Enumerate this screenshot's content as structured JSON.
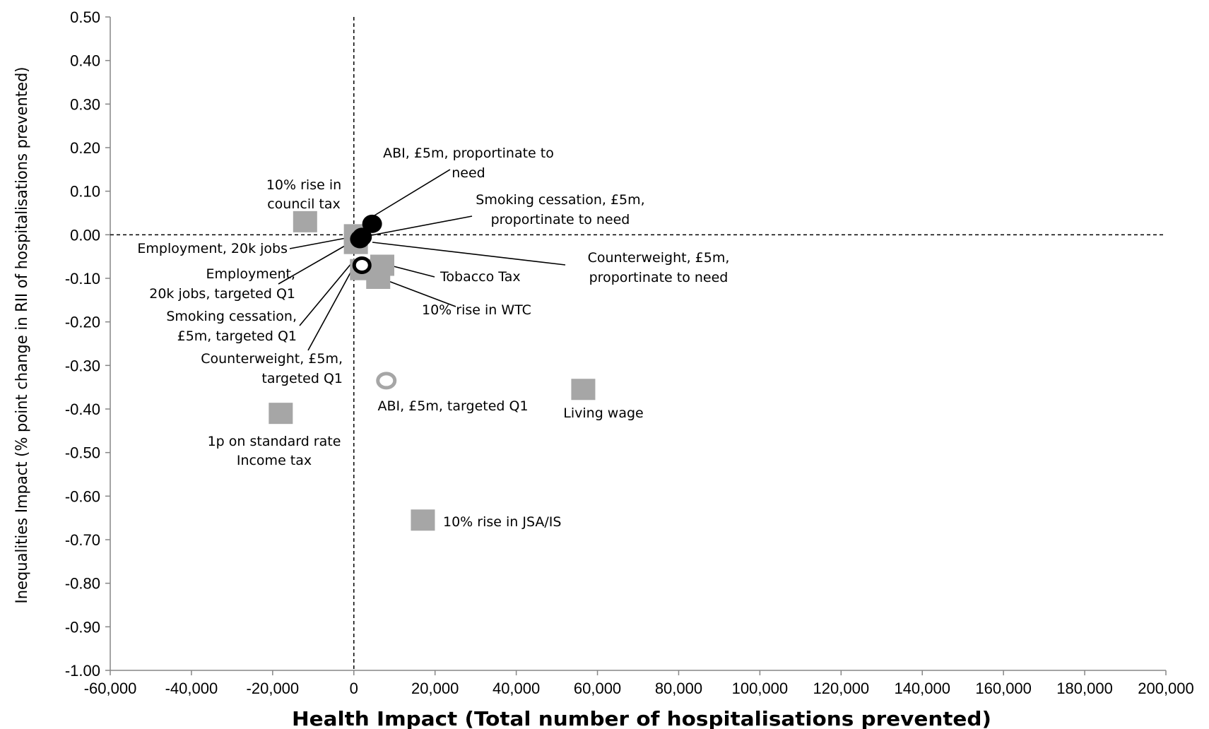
{
  "chart_data": {
    "type": "scatter",
    "xlabel": "Health Impact (Total number of  hospitalisations prevented)",
    "ylabel": "Inequalities Impact (% point change in RII of hospitalisations prevented)",
    "xlim": [
      -60000,
      200000
    ],
    "ylim": [
      -1.0,
      0.5
    ],
    "x_ticks": [
      "-60,000",
      "-40,000",
      "-20,000",
      "0",
      "20,000",
      "40,000",
      "60,000",
      "80,000",
      "100,000",
      "120,000",
      "140,000",
      "160,000",
      "180,000",
      "200,000"
    ],
    "y_ticks": [
      "0.50",
      "0.40",
      "0.30",
      "0.20",
      "0.10",
      "0.00",
      "-0.10",
      "-0.20",
      "-0.30",
      "-0.40",
      "-0.50",
      "-0.60",
      "-0.70",
      "-0.80",
      "-0.90",
      "-1.00"
    ],
    "grid": false,
    "reference_lines": [
      {
        "axis": "x",
        "value": 0,
        "style": "dashed"
      },
      {
        "axis": "y",
        "value": 0,
        "style": "dashed"
      }
    ],
    "colors": {
      "grey_marker": "#a6a6a6",
      "black_marker": "#000000",
      "axis": "#868686"
    },
    "points": [
      {
        "id": "council-tax",
        "x": -12000,
        "y": 0.03,
        "marker": "square",
        "label": [
          "10% rise in",
          "council tax"
        ]
      },
      {
        "id": "abi-need",
        "x": 4500,
        "y": 0.025,
        "marker": "circle-filled",
        "label": [
          "ABI, £5m, proportinate to",
          "need"
        ]
      },
      {
        "id": "smoking-need",
        "x": 2000,
        "y": -0.005,
        "marker": "circle-filled",
        "label": [
          "Smoking cessation, £5m,",
          "proportinate to need"
        ]
      },
      {
        "id": "employment",
        "x": 500,
        "y": 0.0,
        "marker": "square",
        "label": [
          "Employment, 20k jobs"
        ]
      },
      {
        "id": "employment-q1",
        "x": 500,
        "y": -0.02,
        "marker": "square",
        "label": [
          "Employment,",
          "20k jobs, targeted Q1"
        ]
      },
      {
        "id": "counterweight-need",
        "x": 1500,
        "y": -0.01,
        "marker": "circle-filled",
        "label": [
          "Counterweight, £5m,",
          "proportinate to need"
        ]
      },
      {
        "id": "tobacco-tax",
        "x": 7000,
        "y": -0.07,
        "marker": "square",
        "label": [
          "Tobacco Tax"
        ]
      },
      {
        "id": "wtc",
        "x": 6000,
        "y": -0.1,
        "marker": "square",
        "label": [
          "10% rise in WTC"
        ]
      },
      {
        "id": "smoking-q1",
        "x": 2000,
        "y": -0.08,
        "marker": "square",
        "label": [
          "Smoking cessation,",
          "£5m, targeted Q1"
        ]
      },
      {
        "id": "counterweight-q1",
        "x": 2000,
        "y": -0.07,
        "marker": "circle-open-black",
        "label": [
          "Counterweight, £5m,",
          "targeted Q1"
        ]
      },
      {
        "id": "abi-q1",
        "x": 8000,
        "y": -0.335,
        "marker": "circle-open-grey",
        "label": [
          "ABI, £5m, targeted Q1"
        ]
      },
      {
        "id": "living-wage",
        "x": 56500,
        "y": -0.355,
        "marker": "square",
        "label": [
          "Living wage"
        ]
      },
      {
        "id": "income-tax",
        "x": -18000,
        "y": -0.41,
        "marker": "square",
        "label": [
          "1p on standard rate",
          "Income tax"
        ]
      },
      {
        "id": "jsa",
        "x": 17000,
        "y": -0.655,
        "marker": "square",
        "label": [
          "10% rise in JSA/IS"
        ]
      }
    ]
  }
}
